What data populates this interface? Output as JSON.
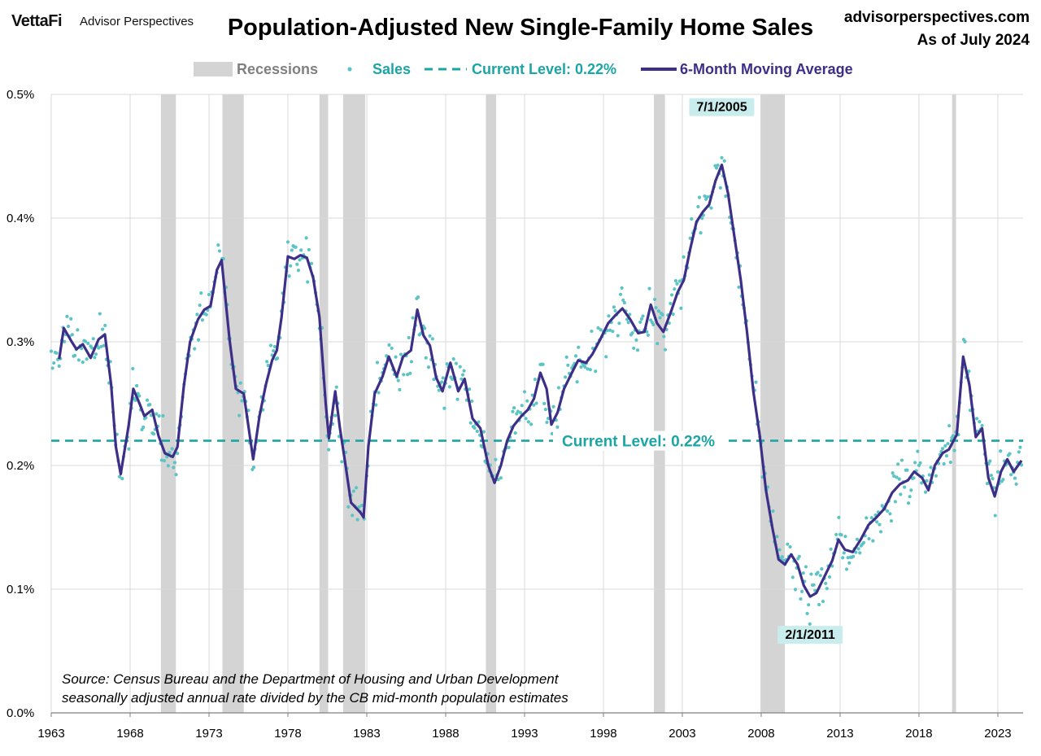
{
  "header": {
    "brand": "VettaFi",
    "brand_sub": "Advisor Perspectives",
    "title": "Population-Adjusted New Single-Family Home Sales",
    "site": "advisorperspectives.com",
    "asof": "As of July 2024"
  },
  "colors": {
    "recession": "#d4d4d4",
    "sales": "#5cc4c4",
    "current": "#1ba5a5",
    "ma": "#3d2f88",
    "grid": "#d9d9d9"
  },
  "chart_data": {
    "type": "line",
    "legend": {
      "placement": "top",
      "items": [
        "Recessions",
        "Sales",
        "Current Level: 0.22%",
        "6-Month Moving Average"
      ]
    },
    "ylim": [
      0,
      0.5
    ],
    "y_ticks": [
      "0.0%",
      "0.1%",
      "0.2%",
      "0.3%",
      "0.4%",
      "0.5%"
    ],
    "y_tick_values": [
      0,
      0.1,
      0.2,
      0.3,
      0.4,
      0.5
    ],
    "xlim": [
      1963,
      2024.6
    ],
    "x_ticks": [
      "1963",
      "1968",
      "1973",
      "1978",
      "1983",
      "1988",
      "1993",
      "1998",
      "2003",
      "2008",
      "2013",
      "2018",
      "2023"
    ],
    "x_tick_values": [
      1963,
      1968,
      1973,
      1978,
      1983,
      1988,
      1993,
      1998,
      2003,
      2008,
      2013,
      2018,
      2023
    ],
    "grid": true,
    "current_level": {
      "value": 0.22,
      "label": "Current Level: 0.22%"
    },
    "recessions": [
      [
        1969.95,
        1970.9
      ],
      [
        1973.85,
        1975.2
      ],
      [
        1980.0,
        1980.55
      ],
      [
        1981.5,
        1982.9
      ],
      [
        1990.55,
        1991.2
      ],
      [
        2001.2,
        2001.9
      ],
      [
        2007.95,
        2009.5
      ],
      [
        2020.1,
        2020.35
      ]
    ],
    "annotations": [
      {
        "label": "7/1/2005",
        "x": 2005.5,
        "y": 0.443
      },
      {
        "label": "2/1/2011",
        "x": 2011.1,
        "y": 0.094
      }
    ],
    "moving_average": {
      "name": "6-Month Moving Average",
      "points": [
        [
          1963.5,
          0.286
        ],
        [
          1963.8,
          0.311
        ],
        [
          1964.3,
          0.3
        ],
        [
          1964.6,
          0.294
        ],
        [
          1965.0,
          0.298
        ],
        [
          1965.5,
          0.287
        ],
        [
          1966.0,
          0.302
        ],
        [
          1966.4,
          0.306
        ],
        [
          1966.8,
          0.265
        ],
        [
          1967.1,
          0.215
        ],
        [
          1967.4,
          0.193
        ],
        [
          1967.9,
          0.232
        ],
        [
          1968.2,
          0.262
        ],
        [
          1968.6,
          0.25
        ],
        [
          1968.9,
          0.24
        ],
        [
          1969.4,
          0.245
        ],
        [
          1969.8,
          0.224
        ],
        [
          1970.2,
          0.21
        ],
        [
          1970.7,
          0.207
        ],
        [
          1971.0,
          0.215
        ],
        [
          1971.4,
          0.264
        ],
        [
          1971.8,
          0.3
        ],
        [
          1972.3,
          0.318
        ],
        [
          1972.7,
          0.326
        ],
        [
          1973.1,
          0.329
        ],
        [
          1973.5,
          0.358
        ],
        [
          1973.8,
          0.366
        ],
        [
          1974.3,
          0.302
        ],
        [
          1974.7,
          0.262
        ],
        [
          1975.2,
          0.258
        ],
        [
          1975.8,
          0.205
        ],
        [
          1976.2,
          0.24
        ],
        [
          1976.6,
          0.265
        ],
        [
          1977.0,
          0.285
        ],
        [
          1977.3,
          0.293
        ],
        [
          1977.6,
          0.32
        ],
        [
          1978.0,
          0.369
        ],
        [
          1978.4,
          0.367
        ],
        [
          1978.8,
          0.37
        ],
        [
          1979.2,
          0.368
        ],
        [
          1979.6,
          0.352
        ],
        [
          1980.0,
          0.32
        ],
        [
          1980.4,
          0.25
        ],
        [
          1980.6,
          0.222
        ],
        [
          1981.0,
          0.26
        ],
        [
          1981.3,
          0.23
        ],
        [
          1981.6,
          0.205
        ],
        [
          1982.0,
          0.17
        ],
        [
          1982.6,
          0.162
        ],
        [
          1982.8,
          0.158
        ],
        [
          1983.1,
          0.215
        ],
        [
          1983.5,
          0.258
        ],
        [
          1984.0,
          0.272
        ],
        [
          1984.4,
          0.288
        ],
        [
          1984.9,
          0.272
        ],
        [
          1985.3,
          0.288
        ],
        [
          1985.8,
          0.293
        ],
        [
          1986.2,
          0.326
        ],
        [
          1986.6,
          0.305
        ],
        [
          1987.0,
          0.297
        ],
        [
          1987.4,
          0.271
        ],
        [
          1987.8,
          0.26
        ],
        [
          1988.3,
          0.283
        ],
        [
          1988.8,
          0.26
        ],
        [
          1989.2,
          0.27
        ],
        [
          1989.7,
          0.238
        ],
        [
          1990.2,
          0.23
        ],
        [
          1990.7,
          0.2
        ],
        [
          1991.1,
          0.186
        ],
        [
          1991.5,
          0.2
        ],
        [
          1991.9,
          0.22
        ],
        [
          1992.3,
          0.232
        ],
        [
          1992.8,
          0.24
        ],
        [
          1993.2,
          0.245
        ],
        [
          1993.6,
          0.254
        ],
        [
          1994.0,
          0.275
        ],
        [
          1994.4,
          0.262
        ],
        [
          1994.7,
          0.233
        ],
        [
          1995.1,
          0.243
        ],
        [
          1995.5,
          0.262
        ],
        [
          1996.0,
          0.275
        ],
        [
          1996.4,
          0.285
        ],
        [
          1996.9,
          0.283
        ],
        [
          1997.3,
          0.29
        ],
        [
          1997.8,
          0.302
        ],
        [
          1998.3,
          0.315
        ],
        [
          1998.8,
          0.322
        ],
        [
          1999.2,
          0.327
        ],
        [
          1999.7,
          0.318
        ],
        [
          2000.2,
          0.307
        ],
        [
          2000.6,
          0.308
        ],
        [
          2001.0,
          0.33
        ],
        [
          2001.4,
          0.315
        ],
        [
          2001.8,
          0.308
        ],
        [
          2002.3,
          0.325
        ],
        [
          2002.7,
          0.34
        ],
        [
          2003.1,
          0.35
        ],
        [
          2003.5,
          0.375
        ],
        [
          2003.9,
          0.397
        ],
        [
          2004.3,
          0.405
        ],
        [
          2004.7,
          0.411
        ],
        [
          2005.1,
          0.43
        ],
        [
          2005.5,
          0.443
        ],
        [
          2005.9,
          0.42
        ],
        [
          2006.3,
          0.385
        ],
        [
          2006.7,
          0.35
        ],
        [
          2007.1,
          0.308
        ],
        [
          2007.5,
          0.26
        ],
        [
          2007.9,
          0.225
        ],
        [
          2008.3,
          0.18
        ],
        [
          2008.7,
          0.15
        ],
        [
          2009.1,
          0.124
        ],
        [
          2009.5,
          0.12
        ],
        [
          2009.9,
          0.128
        ],
        [
          2010.3,
          0.12
        ],
        [
          2010.7,
          0.103
        ],
        [
          2011.1,
          0.094
        ],
        [
          2011.5,
          0.097
        ],
        [
          2012.0,
          0.11
        ],
        [
          2012.5,
          0.123
        ],
        [
          2012.9,
          0.14
        ],
        [
          2013.3,
          0.132
        ],
        [
          2013.8,
          0.13
        ],
        [
          2014.3,
          0.14
        ],
        [
          2014.8,
          0.152
        ],
        [
          2015.3,
          0.158
        ],
        [
          2015.8,
          0.165
        ],
        [
          2016.3,
          0.178
        ],
        [
          2016.8,
          0.185
        ],
        [
          2017.3,
          0.188
        ],
        [
          2017.7,
          0.195
        ],
        [
          2018.2,
          0.19
        ],
        [
          2018.6,
          0.18
        ],
        [
          2019.0,
          0.2
        ],
        [
          2019.5,
          0.21
        ],
        [
          2019.9,
          0.213
        ],
        [
          2020.4,
          0.225
        ],
        [
          2020.8,
          0.288
        ],
        [
          2021.2,
          0.265
        ],
        [
          2021.6,
          0.223
        ],
        [
          2022.0,
          0.23
        ],
        [
          2022.4,
          0.19
        ],
        [
          2022.8,
          0.175
        ],
        [
          2023.2,
          0.195
        ],
        [
          2023.6,
          0.205
        ],
        [
          2024.0,
          0.195
        ],
        [
          2024.5,
          0.204
        ]
      ]
    }
  },
  "note": {
    "line1": "Source: Census Bureau and the Department of Housing and Urban Development",
    "line2": "seasonally adjusted annual rate divided by the CB mid-month population estimates"
  }
}
